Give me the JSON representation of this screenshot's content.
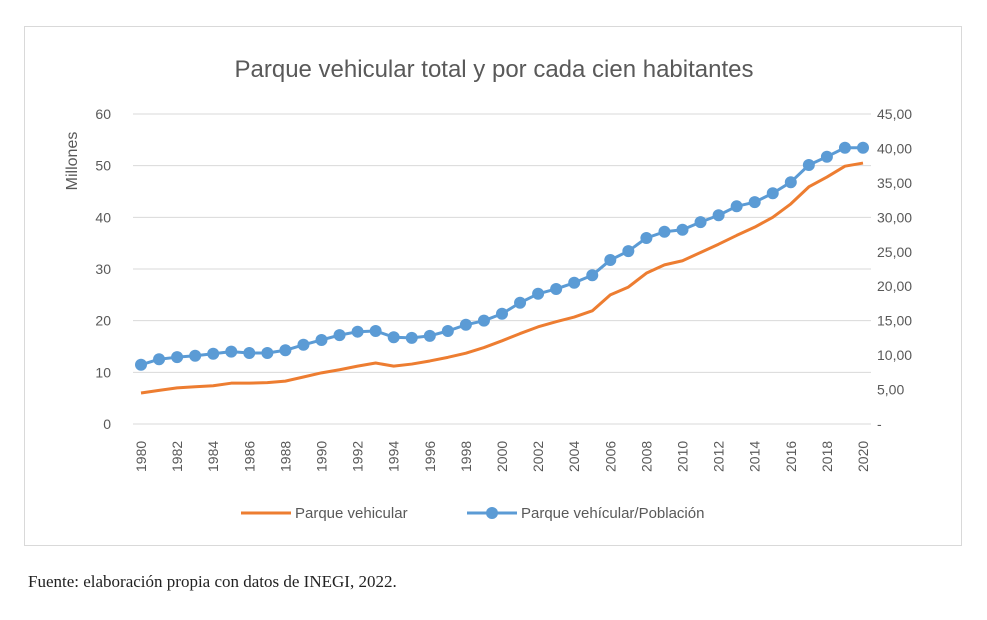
{
  "chart_data": {
    "type": "line",
    "title": "Parque vehicular total y por cada cien habitantes",
    "ylabel": "Millones",
    "ylim": [
      0,
      60
    ],
    "yticks": [
      "0",
      "10",
      "20",
      "30",
      "40",
      "50",
      "60"
    ],
    "y2lim": [
      0,
      45
    ],
    "y2ticks": [
      "-",
      "5,00",
      "10,00",
      "15,00",
      "20,00",
      "25,00",
      "30,00",
      "35,00",
      "40,00",
      "45,00"
    ],
    "grid": true,
    "legend": "bottom",
    "x": [
      1980,
      1981,
      1982,
      1983,
      1984,
      1985,
      1986,
      1987,
      1988,
      1989,
      1990,
      1991,
      1992,
      1993,
      1994,
      1995,
      1996,
      1997,
      1998,
      1999,
      2000,
      2001,
      2002,
      2003,
      2004,
      2005,
      2006,
      2007,
      2008,
      2009,
      2010,
      2011,
      2012,
      2013,
      2014,
      2015,
      2016,
      2017,
      2018,
      2019,
      2020
    ],
    "xticks": [
      "1980",
      "1982",
      "1984",
      "1986",
      "1988",
      "1990",
      "1992",
      "1994",
      "1996",
      "1998",
      "2000",
      "2002",
      "2004",
      "2006",
      "2008",
      "2010",
      "2012",
      "2014",
      "2016",
      "2018",
      "2020"
    ],
    "series": [
      {
        "name": "Parque vehicular",
        "axis": "left",
        "color": "#ed7d31",
        "values": [
          6.0,
          6.5,
          7.0,
          7.2,
          7.4,
          7.9,
          7.9,
          8.0,
          8.3,
          9.1,
          9.9,
          10.5,
          11.2,
          11.8,
          11.2,
          11.6,
          12.2,
          12.9,
          13.7,
          14.8,
          16.1,
          17.5,
          18.8,
          19.8,
          20.7,
          21.9,
          25.0,
          26.5,
          29.2,
          30.8,
          31.6,
          33.2,
          34.8,
          36.5,
          38.1,
          40.0,
          42.6,
          45.9,
          47.8,
          49.9,
          50.5
        ]
      },
      {
        "name": "Parque vehícular/Población",
        "axis": "right",
        "color": "#5b9bd5",
        "values": [
          8.6,
          9.4,
          9.7,
          9.9,
          10.2,
          10.5,
          10.3,
          10.3,
          10.7,
          11.5,
          12.2,
          12.9,
          13.4,
          13.5,
          12.6,
          12.5,
          12.8,
          13.5,
          14.4,
          15.0,
          16.0,
          17.6,
          18.9,
          19.6,
          20.5,
          21.6,
          23.8,
          25.1,
          27.0,
          27.9,
          28.2,
          29.3,
          30.3,
          31.6,
          32.2,
          33.5,
          35.1,
          37.6,
          38.8,
          40.1,
          40.1
        ]
      }
    ]
  },
  "caption": "Fuente: elaboración propia con datos de INEGI, 2022."
}
